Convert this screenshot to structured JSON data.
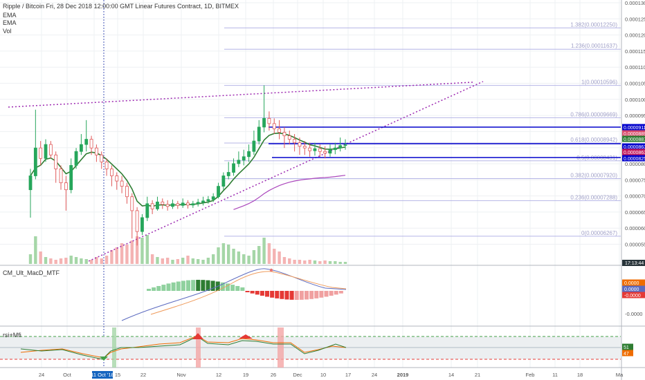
{
  "header": {
    "title": "Ripple / Bitcoin Fri, 28 Dec 2018 12:00:00 GMT Linear Futures Contract, 1D, BITMEX",
    "indicators": [
      "EMA",
      "EMA",
      "Vol"
    ]
  },
  "panels": {
    "macd_label": "CM_Ult_MacD_MTF",
    "rsi_label": "rsi+Mfi"
  },
  "fib_levels": [
    {
      "label": "1.382(0.00012250)",
      "value": 0.0001225
    },
    {
      "label": "1.236(0.00011637)",
      "value": 0.00011637
    },
    {
      "label": "1(0.00010596)",
      "value": 0.00010596
    },
    {
      "label": "0.786(0.00009669)",
      "value": 9.669e-05
    },
    {
      "label": "0.618(0.00008942)",
      "value": 8.942e-05
    },
    {
      "label": "0.5(0.00008431)",
      "value": 8.431e-05
    },
    {
      "label": "0.382(0.00007920)",
      "value": 7.92e-05
    },
    {
      "label": "0.236(0.00007288)",
      "value": 7.288e-05
    },
    {
      "label": "0(0.00006267)",
      "value": 6.267e-05
    }
  ],
  "price_axis": [
    "0.00013000",
    "0.00012500",
    "0.00012000",
    "0.00011500",
    "0.00011000",
    "0.00010500",
    "0.00010000",
    "0.00009500",
    "0.00009000",
    "0.00008500",
    "0.00008000",
    "0.00007500",
    "0.00007000",
    "0.00006500",
    "0.00006000",
    "0.00005500"
  ],
  "price_badges": [
    {
      "label": "0.00009116",
      "color": "#0000cc"
    },
    {
      "label": "0.00008892",
      "color": "#d84a6a"
    },
    {
      "label": "0.00008877",
      "color": "#2e7d32"
    },
    {
      "label": "0.00008631",
      "color": "#0000cc"
    },
    {
      "label": "0.00008630",
      "color": "#c2185b"
    },
    {
      "label": "0.00008252",
      "color": "#0000cc"
    }
  ],
  "time_badge": "17:13:44",
  "macd_axis": [
    "0.0000",
    "-0.0000"
  ],
  "macd_badges": [
    {
      "label": "0.0000",
      "color": "#ef6c00"
    },
    {
      "label": "0.0000",
      "color": "#5c6bc0"
    },
    {
      "label": "-0.0000",
      "color": "#e53935"
    }
  ],
  "rsi_badges": [
    {
      "label": "51",
      "color": "#2e7d32"
    },
    {
      "label": "47",
      "color": "#ef6c00"
    }
  ],
  "time_axis": [
    "24",
    "Oct",
    "11 Oct '18",
    "15",
    "22",
    "Nov",
    "12",
    "19",
    "26",
    "Dec",
    "10",
    "17",
    "24",
    "2019",
    "14",
    "21",
    "Feb",
    "11",
    "18",
    "Ma"
  ],
  "highlight_date": "11 Oct '18",
  "chart_data": {
    "type": "candlestick",
    "title": "Ripple / Bitcoin Fri, 28 Dec 2018 12:00:00 GMT Linear Futures Contract, 1D, BITMEX",
    "candles": [
      [
        7.6e-05,
        8e-05,
        6.8e-05,
        8.2e-05
      ],
      [
        8e-05,
        8.8e-05,
        7.9e-05,
        9.9e-05
      ],
      [
        8.8e-05,
        8.5e-05,
        8.3e-05,
        9e-05
      ],
      [
        8.5e-05,
        8.9e-05,
        8.4e-05,
        9.05e-05
      ],
      [
        8.9e-05,
        8.6e-05,
        8.5e-05,
        9e-05
      ],
      [
        8.6e-05,
        8.2e-05,
        7.8e-05,
        8.7e-05
      ],
      [
        8.2e-05,
        7.8e-05,
        7.6e-05,
        8.3e-05
      ],
      [
        7.8e-05,
        7.6e-05,
        7e-05,
        8e-05
      ],
      [
        7.6e-05,
        8.3e-05,
        7.5e-05,
        8.5e-05
      ],
      [
        8.3e-05,
        8.7e-05,
        8.2e-05,
        8.8e-05
      ],
      [
        8.7e-05,
        8.9e-05,
        8.6e-05,
        9.2e-05
      ],
      [
        8.9e-05,
        9.05e-05,
        8.7e-05,
        9.6e-05
      ],
      [
        9.05e-05,
        8.8e-05,
        8.6e-05,
        9.15e-05
      ],
      [
        8.8e-05,
        8.6e-05,
        8.4e-05,
        8.9e-05
      ],
      [
        8.6e-05,
        8.4e-05,
        8.2e-05,
        8.7e-05
      ],
      [
        8.4e-05,
        8.2e-05,
        8e-05,
        8.5e-05
      ],
      [
        8.2e-05,
        8e-05,
        7.7e-05,
        8.3e-05
      ],
      [
        8e-05,
        7.85e-05,
        7.6e-05,
        8.1e-05
      ],
      [
        7.85e-05,
        7.7e-05,
        7.5e-05,
        8e-05
      ],
      [
        7.7e-05,
        7.4e-05,
        7.2e-05,
        7.8e-05
      ],
      [
        7.4e-05,
        7e-05,
        6.2e-05,
        7.5e-05
      ],
      [
        7e-05,
        6.4e-05,
        6e-05,
        7.1e-05
      ],
      [
        6.4e-05,
        6.8e-05,
        6.3e-05,
        6.9e-05
      ],
      [
        6.8e-05,
        7.2e-05,
        6.7e-05,
        7.4e-05
      ],
      [
        7.2e-05,
        7.05e-05,
        6.9e-05,
        7.3e-05
      ],
      [
        7.05e-05,
        7.25e-05,
        7e-05,
        7.4e-05
      ],
      [
        7.25e-05,
        7.18e-05,
        7.05e-05,
        7.35e-05
      ],
      [
        7.18e-05,
        7.12e-05,
        7e-05,
        7.3e-05
      ],
      [
        7.12e-05,
        7.2e-05,
        7.05e-05,
        7.32e-05
      ],
      [
        7.2e-05,
        7.15e-05,
        7.05e-05,
        7.28e-05
      ],
      [
        7.15e-05,
        7.22e-05,
        7.08e-05,
        7.35e-05
      ],
      [
        7.22e-05,
        7.16e-05,
        7.06e-05,
        7.3e-05
      ],
      [
        7.16e-05,
        7.2e-05,
        7.08e-05,
        7.28e-05
      ],
      [
        7.2e-05,
        7.24e-05,
        7.12e-05,
        7.34e-05
      ],
      [
        7.24e-05,
        7.28e-05,
        7.15e-05,
        7.4e-05
      ],
      [
        7.28e-05,
        7.32e-05,
        7.2e-05,
        7.42e-05
      ],
      [
        7.32e-05,
        7.4e-05,
        7.25e-05,
        7.5e-05
      ],
      [
        7.4e-05,
        7.7e-05,
        7.35e-05,
        7.8e-05
      ],
      [
        7.7e-05,
        8e-05,
        7.6e-05,
        8.1e-05
      ],
      [
        8e-05,
        8.1e-05,
        7.9e-05,
        8.4e-05
      ],
      [
        8.1e-05,
        8.35e-05,
        8e-05,
        8.5e-05
      ],
      [
        8.35e-05,
        8.45e-05,
        8.25e-05,
        8.7e-05
      ],
      [
        8.45e-05,
        8.55e-05,
        8.3e-05,
        8.75e-05
      ],
      [
        8.55e-05,
        8.7e-05,
        8.4e-05,
        8.9e-05
      ],
      [
        8.7e-05,
        9e-05,
        8.6e-05,
        9.3e-05
      ],
      [
        9e-05,
        9.4e-05,
        8.9e-05,
        9.6e-05
      ],
      [
        9.4e-05,
        9.65e-05,
        9.25e-05,
        0.000106
      ],
      [
        9.65e-05,
        9.5e-05,
        9.3e-05,
        9.85e-05
      ],
      [
        9.5e-05,
        9.35e-05,
        9.2e-05,
        9.65e-05
      ],
      [
        9.35e-05,
        9.25e-05,
        9.05e-05,
        9.6e-05
      ],
      [
        9.25e-05,
        9.15e-05,
        8.8e-05,
        9.4e-05
      ],
      [
        9.15e-05,
        9.05e-05,
        8.9e-05,
        9.3e-05
      ],
      [
        9.05e-05,
        8.95e-05,
        8.7e-05,
        9.2e-05
      ],
      [
        8.95e-05,
        8.85e-05,
        8.6e-05,
        9.1e-05
      ],
      [
        8.85e-05,
        8.8e-05,
        8.6e-05,
        9e-05
      ],
      [
        8.8e-05,
        8.72e-05,
        8.55e-05,
        8.95e-05
      ],
      [
        8.72e-05,
        8.78e-05,
        8.58e-05,
        8.95e-05
      ],
      [
        8.78e-05,
        8.7e-05,
        8.55e-05,
        8.9e-05
      ],
      [
        8.7e-05,
        8.65e-05,
        8.5e-05,
        8.85e-05
      ],
      [
        8.65e-05,
        8.75e-05,
        8.55e-05,
        8.9e-05
      ],
      [
        8.75e-05,
        8.8e-05,
        8.62e-05,
        8.95e-05
      ],
      [
        8.8e-05,
        8.87e-05,
        8.7e-05,
        9.1e-05
      ],
      [
        8.87e-05,
        8.89e-05,
        8.75e-05,
        9.05e-05
      ]
    ],
    "ylim": [
      5.45e-05,
      0.0001305
    ],
    "ema": "green short EMA and purple long EMA overlays",
    "grid": true
  }
}
